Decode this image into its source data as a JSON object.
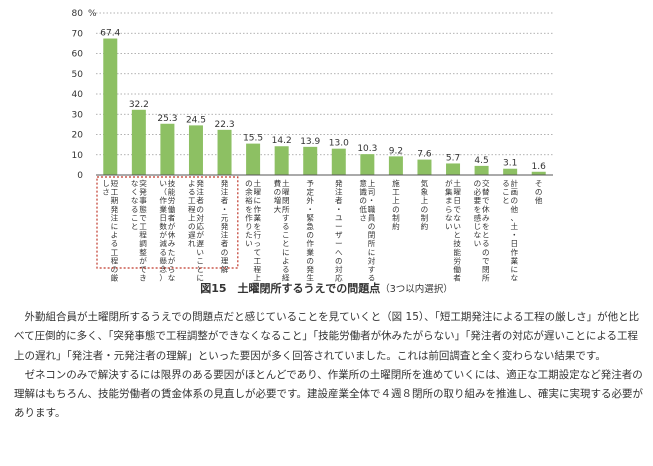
{
  "chart_data": {
    "type": "bar",
    "unit_label": "%",
    "ylim": [
      0,
      80
    ],
    "yticks": [
      0,
      10,
      20,
      30,
      40,
      50,
      60,
      70,
      80
    ],
    "grid": true,
    "color": "#8dc063",
    "highlight_color": "#c0392b",
    "highlighted_indices": [
      0,
      1,
      2,
      3,
      4
    ],
    "categories": [
      "短工期発注による工程の厳しさ",
      "突発事態で工程調整ができなくなること",
      "技能労働者が休みたがらない（作業日数が減る懸念）",
      "発注者の対応が遅いことによる工程上の遅れ",
      "発注者・元発注者の理解",
      "土曜に作業を行って工程上の余裕を作りたい",
      "土曜閉所することによる経費の増大",
      "予定外・緊急の作業の発生",
      "発注者・ユーザーへの対応",
      "上司・職員の閉所に対する意識の低さ",
      "施工上の制約",
      "気象上の制約",
      "土曜日でないと技能労働者が集まらない",
      "交替で休みをとるので閉所の必要を感じない",
      "計画の他、土・日作業になること",
      "その他"
    ],
    "values": [
      67.4,
      32.2,
      25.3,
      24.5,
      22.3,
      15.5,
      14.2,
      13.9,
      13.0,
      10.3,
      9.2,
      7.6,
      5.7,
      4.5,
      3.1,
      1.6
    ],
    "value_labels": [
      "67.4",
      "32.2",
      "25.3",
      "24.5",
      "22.3",
      "15.5",
      "14.2",
      "13.9",
      "13.0",
      "10.3",
      "9.2",
      "7.6",
      "5.7",
      "4.5",
      "3.1",
      "1.6"
    ]
  },
  "caption": {
    "title": "図15　土曜閉所するうえでの問題点",
    "subtitle": "（3つ以内選択）"
  },
  "body": {
    "paragraph1": "外勤組合員が土曜閉所するうえでの問題点だと感じていることを見ていくと（図 15）、「短工期発注による工程の厳しさ」が他と比べて圧倒的に多く、「突発事態で工程調整ができなくなること」「技能労働者が休みたがらない」「発注者の対応が遅いことによる工程上の遅れ」「発注者・元発注者の理解」といった要因が多く回答されていました。これは前回調査と全く変わらない結果です。",
    "paragraph2": "ゼネコンのみで解決するには限界のある要因がほとんどであり、作業所の土曜閉所を進めていくには、適正な工期設定など発注者の理解はもちろん、技能労働者の賃金体系の見直しが必要です。建設産業全体で４週８閉所の取り組みを推進し、確実に実現する必要があります。"
  }
}
